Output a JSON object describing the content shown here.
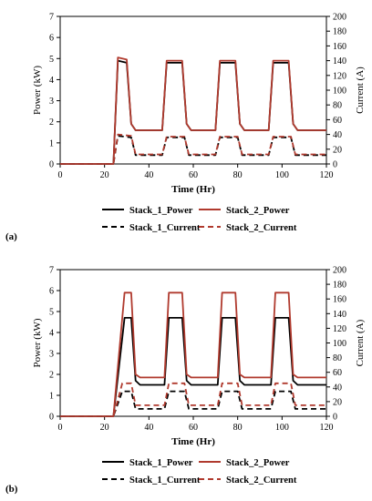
{
  "chart_data": [
    {
      "panel_label": "(a)",
      "type": "line",
      "xlabel": "Time (Hr)",
      "ylabel": "Power (kW)",
      "y2label": "Current (A)",
      "xlim": [
        0,
        120
      ],
      "ylim": [
        0,
        7
      ],
      "y2lim": [
        0,
        200
      ],
      "xticks": [
        "0",
        "20",
        "40",
        "60",
        "80",
        "100",
        "120"
      ],
      "yticks": [
        "0",
        "1",
        "2",
        "3",
        "4",
        "5",
        "6",
        "7"
      ],
      "y2ticks": [
        "0",
        "20",
        "40",
        "60",
        "80",
        "100",
        "120",
        "140",
        "160",
        "180",
        "200"
      ],
      "legend": "bottom",
      "series": [
        {
          "name": "Stack_1_Power",
          "axis": "left",
          "color": "#000000",
          "dash": "solid",
          "x": [
            0,
            24,
            26,
            30,
            32,
            34,
            46,
            48,
            55,
            57,
            59,
            70,
            72,
            79,
            81,
            83,
            94,
            96,
            103,
            105,
            107,
            120
          ],
          "y": [
            0,
            0,
            4.9,
            4.8,
            1.9,
            1.6,
            1.6,
            4.8,
            4.8,
            1.9,
            1.6,
            1.6,
            4.8,
            4.8,
            1.9,
            1.6,
            1.6,
            4.8,
            4.8,
            1.9,
            1.6,
            1.6
          ]
        },
        {
          "name": "Stack_2_Power",
          "axis": "left",
          "color": "#b03a2e",
          "dash": "solid",
          "x": [
            0,
            24,
            26,
            30,
            32,
            34,
            46,
            48,
            55,
            57,
            59,
            70,
            72,
            79,
            81,
            83,
            94,
            96,
            103,
            105,
            107,
            120
          ],
          "y": [
            0,
            0,
            5.05,
            4.95,
            1.9,
            1.6,
            1.6,
            4.9,
            4.9,
            1.9,
            1.6,
            1.6,
            4.9,
            4.9,
            1.9,
            1.6,
            1.6,
            4.9,
            4.9,
            1.9,
            1.6,
            1.6
          ]
        },
        {
          "name": "Stack_1_Current",
          "axis": "right",
          "color": "#000000",
          "dash": "dashed",
          "x": [
            0,
            24,
            26,
            32,
            34,
            46,
            48,
            56,
            58,
            70,
            72,
            80,
            82,
            94,
            96,
            104,
            106,
            120
          ],
          "y": [
            0,
            0,
            38,
            36,
            12,
            12,
            36,
            36,
            12,
            12,
            36,
            36,
            12,
            12,
            36,
            36,
            12,
            12
          ]
        },
        {
          "name": "Stack_2_Current",
          "axis": "right",
          "color": "#b03a2e",
          "dash": "dashed",
          "x": [
            0,
            24,
            26,
            32,
            34,
            46,
            48,
            56,
            58,
            70,
            72,
            80,
            82,
            94,
            96,
            104,
            106,
            120
          ],
          "y": [
            0,
            0,
            40,
            38,
            13,
            13,
            37,
            37,
            13,
            13,
            37,
            37,
            13,
            13,
            37,
            37,
            13,
            13
          ]
        }
      ]
    },
    {
      "panel_label": "(b)",
      "type": "line",
      "xlabel": "Time (Hr)",
      "ylabel": "Power (kW)",
      "y2label": "Current (A)",
      "xlim": [
        0,
        120
      ],
      "ylim": [
        0,
        7
      ],
      "y2lim": [
        0,
        200
      ],
      "xticks": [
        "0",
        "20",
        "40",
        "60",
        "80",
        "100",
        "120"
      ],
      "yticks": [
        "0",
        "1",
        "2",
        "3",
        "4",
        "5",
        "6",
        "7"
      ],
      "y2ticks": [
        "0",
        "20",
        "40",
        "60",
        "80",
        "100",
        "120",
        "140",
        "160",
        "180",
        "200"
      ],
      "legend": "bottom",
      "series": [
        {
          "name": "Stack_1_Power",
          "axis": "left",
          "color": "#000000",
          "dash": "solid",
          "x": [
            0,
            24,
            29,
            32,
            34,
            36,
            47,
            49,
            55,
            57,
            59,
            71,
            73,
            79,
            81,
            83,
            95,
            97,
            103,
            105,
            107,
            120
          ],
          "y": [
            0,
            0,
            4.7,
            4.7,
            1.7,
            1.5,
            1.5,
            4.7,
            4.7,
            1.7,
            1.5,
            1.5,
            4.7,
            4.7,
            1.7,
            1.5,
            1.5,
            4.7,
            4.7,
            1.7,
            1.5,
            1.5
          ]
        },
        {
          "name": "Stack_2_Power",
          "axis": "left",
          "color": "#b03a2e",
          "dash": "solid",
          "x": [
            0,
            24,
            29,
            32,
            34,
            36,
            47,
            49,
            55,
            57,
            59,
            71,
            73,
            79,
            81,
            83,
            95,
            97,
            103,
            105,
            107,
            120
          ],
          "y": [
            0,
            0,
            5.9,
            5.9,
            2.0,
            1.85,
            1.85,
            5.9,
            5.9,
            2.0,
            1.85,
            1.85,
            5.9,
            5.9,
            2.0,
            1.85,
            1.85,
            5.9,
            5.9,
            2.0,
            1.85,
            1.85
          ]
        },
        {
          "name": "Stack_1_Current",
          "axis": "right",
          "color": "#000000",
          "dash": "dashed",
          "x": [
            0,
            24,
            28,
            32,
            34,
            47,
            49,
            56,
            58,
            71,
            73,
            80,
            82,
            95,
            97,
            104,
            106,
            120
          ],
          "y": [
            0,
            0,
            34,
            34,
            10,
            10,
            34,
            34,
            10,
            10,
            34,
            34,
            10,
            10,
            34,
            34,
            10,
            10
          ]
        },
        {
          "name": "Stack_2_Current",
          "axis": "right",
          "color": "#b03a2e",
          "dash": "dashed",
          "x": [
            0,
            24,
            28,
            32,
            34,
            47,
            49,
            56,
            58,
            71,
            73,
            80,
            82,
            95,
            97,
            104,
            106,
            120
          ],
          "y": [
            0,
            0,
            45,
            45,
            15,
            15,
            45,
            45,
            15,
            15,
            45,
            45,
            15,
            15,
            45,
            45,
            15,
            15
          ]
        }
      ]
    }
  ]
}
